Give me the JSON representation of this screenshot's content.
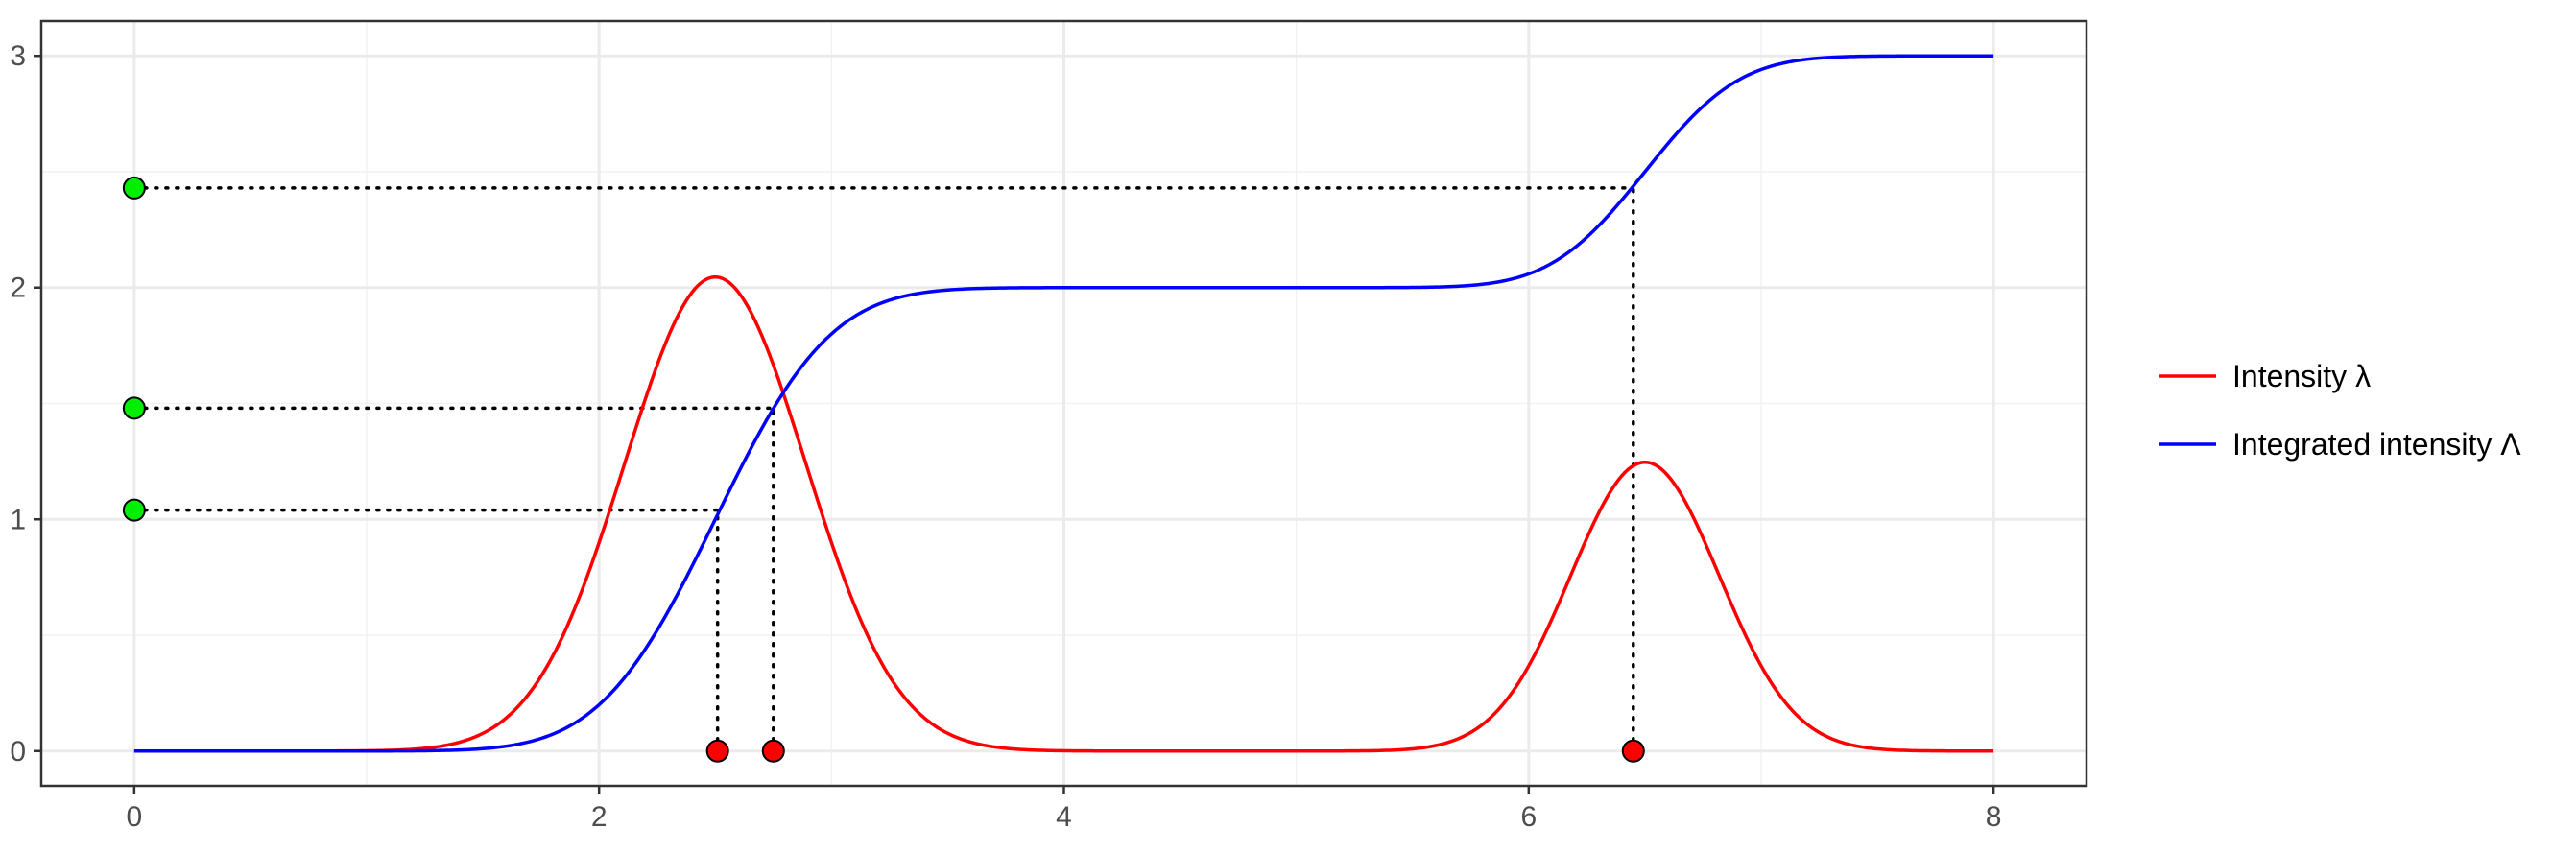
{
  "chart_data": {
    "type": "line",
    "xlim": [
      -0.4,
      8.4
    ],
    "ylim": [
      -0.15,
      3.15
    ],
    "x_ticks": [
      0,
      2,
      4,
      6,
      8
    ],
    "x_tick_labels": [
      "0",
      "2",
      "4",
      "6",
      "8"
    ],
    "y_ticks": [
      0,
      1,
      2,
      3
    ],
    "y_tick_labels": [
      "0",
      "1",
      "2",
      "3"
    ],
    "grid": true,
    "legend_position": "right",
    "legend": [
      "Intensity λ",
      "Integrated intensity Λ"
    ],
    "series": [
      {
        "name": "Intensity λ",
        "color": "#ff0000",
        "components": [
          {
            "center": 2.5,
            "sd": 0.39,
            "weight": 2.0
          },
          {
            "center": 6.5,
            "sd": 0.32,
            "weight": 1.0
          }
        ],
        "x_range": [
          0,
          8
        ]
      },
      {
        "name": "Integrated intensity Λ",
        "color": "#0000ff",
        "is_integral_of": "Intensity λ",
        "x_range": [
          0,
          8
        ]
      }
    ],
    "integrated_levels": [
      2.43,
      1.48,
      1.04
    ],
    "level_marker_x": 0,
    "level_marker_color": "#00ee00",
    "event_times": [
      2.51,
      2.75,
      6.45
    ],
    "event_marker_y": 0,
    "event_marker_color": "#ff0000",
    "connector_style": "dotted",
    "connector_color": "#000000"
  }
}
